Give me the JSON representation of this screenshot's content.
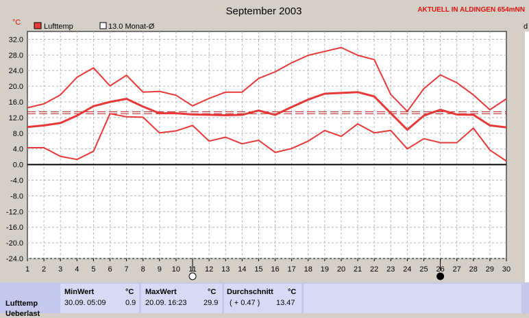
{
  "header": {
    "station": "AKTUELL IN ALDINGEN 654mNN",
    "unit_left": "°C",
    "unit_right_partial": "d"
  },
  "legend": {
    "series_label": "Lufttemp",
    "mean_label": "13.0 Monat-Ø"
  },
  "colors": {
    "series": "#e83838",
    "mean_line": "#b01818",
    "zero_line": "#000000",
    "grid": "#b4b4b4",
    "plot_bg": "#ffffff",
    "page_bg": "#d4d0c8",
    "stats_bg": "#c4c8ec"
  },
  "chart_data": {
    "type": "line",
    "title": "September 2003",
    "xlabel": "",
    "ylabel": "°C",
    "x": [
      1,
      2,
      3,
      4,
      5,
      6,
      7,
      8,
      9,
      10,
      11,
      12,
      13,
      14,
      15,
      16,
      17,
      18,
      19,
      20,
      21,
      22,
      23,
      24,
      25,
      26,
      27,
      28,
      29,
      30
    ],
    "xlim": [
      1,
      30
    ],
    "ylim": [
      -24,
      34
    ],
    "yticks": [
      32.0,
      28.0,
      24.0,
      20.0,
      16.0,
      12.0,
      8.0,
      4.0,
      0.0,
      -4.0,
      -8.0,
      -12.0,
      -16.0,
      -20.0,
      -24.0
    ],
    "ytick_labels": [
      "32.0",
      "28.0",
      "24.0",
      "20.0",
      "16.0",
      "12.0",
      "8.0",
      "4.0",
      "0.0",
      "-4.0",
      "-8.0",
      "-12.0",
      "-16.0",
      "-20.0",
      "-24.0"
    ],
    "grid": true,
    "legend_position": "top-left",
    "moon_phases": [
      {
        "day": 11,
        "phase": "full-moon"
      },
      {
        "day": 26,
        "phase": "new-moon"
      }
    ],
    "reference_lines": [
      {
        "value": 13.0,
        "style": "dashed",
        "label": "13.0 Monat-Ø"
      },
      {
        "value": 13.5,
        "style": "dashed"
      },
      {
        "value": 0.0,
        "style": "solid"
      }
    ],
    "series": [
      {
        "role": "max",
        "values": [
          14.5,
          15.5,
          17.8,
          22.3,
          24.7,
          20.1,
          22.8,
          18.5,
          18.7,
          17.7,
          15.0,
          16.9,
          18.5,
          18.5,
          22.0,
          23.7,
          26.0,
          27.9,
          28.9,
          29.9,
          27.9,
          26.8,
          17.9,
          13.6,
          19.4,
          22.9,
          20.9,
          17.8,
          14.0,
          16.8
        ]
      },
      {
        "role": "mean",
        "width": "thick",
        "values": [
          9.6,
          10.0,
          10.6,
          12.5,
          14.9,
          16.0,
          16.8,
          14.8,
          13.1,
          13.1,
          12.8,
          12.7,
          12.6,
          12.7,
          13.8,
          12.7,
          14.7,
          16.6,
          18.1,
          18.3,
          18.5,
          17.4,
          13.1,
          8.9,
          12.5,
          14.0,
          12.8,
          12.7,
          10.0,
          9.5
        ]
      },
      {
        "role": "min",
        "values": [
          4.3,
          4.3,
          2.1,
          1.3,
          3.4,
          13.0,
          12.2,
          12.1,
          8.1,
          8.6,
          10.0,
          6.0,
          7.0,
          5.3,
          6.2,
          3.1,
          4.1,
          6.0,
          8.7,
          7.2,
          10.4,
          8.1,
          8.7,
          4.0,
          6.6,
          5.6,
          5.6,
          9.3,
          3.7,
          0.9
        ]
      }
    ]
  },
  "stats": {
    "row_label": "Lufttemp",
    "row_label2": "Ueberlast",
    "min": {
      "header": "MinWert",
      "unit": "°C",
      "date": "30.09.",
      "time": "05:09",
      "value": "0.9"
    },
    "max": {
      "header": "MaxWert",
      "unit": "°C",
      "date": "20.09.",
      "time": "16:23",
      "value": "29.9"
    },
    "avg": {
      "header": "Durchschnitt",
      "unit": "°C",
      "delta": "( + 0.47 )",
      "value": "13.47"
    }
  }
}
